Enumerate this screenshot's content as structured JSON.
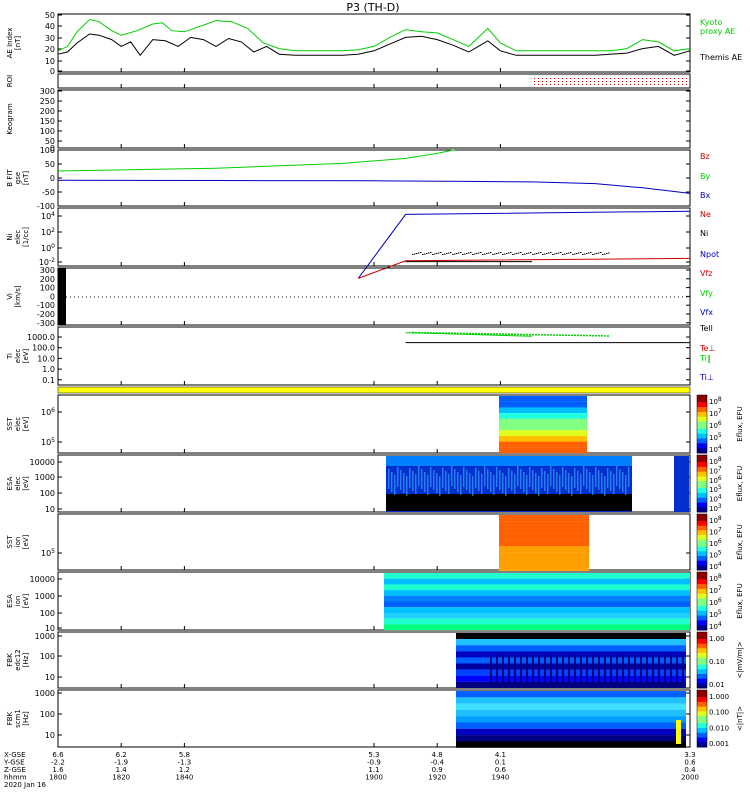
{
  "title": "P3 (TH-D)",
  "colors": {
    "green": "#00d000",
    "black": "#000000",
    "red": "#d00000",
    "blue": "#0000c0",
    "yellow": "#ffff00"
  },
  "chart_data": {
    "type": "line",
    "panels": [
      {
        "id": "ae",
        "ylabel": [
          "AE Index",
          "[nT]"
        ],
        "yticks": [
          "50",
          "40",
          "30",
          "20",
          "10",
          "0"
        ],
        "legend": [
          {
            "text": "Kyoto",
            "color": "green"
          },
          {
            "text": "proxy AE",
            "color": "green"
          },
          {
            "text": "Themis AE",
            "color": "black"
          }
        ],
        "series": [
          {
            "name": "Kyoto proxy AE",
            "color": "green",
            "x": [
              1800,
              1803,
              1806,
              1810,
              1813,
              1817,
              1820,
              1825,
              1830,
              1833,
              1836,
              1840,
              1845,
              1850,
              1855,
              1860,
              1865,
              1870,
              1875,
              1880,
              1885,
              1890,
              1895,
              1900,
              1905,
              1910,
              1915,
              1920,
              1925,
              1930,
              1933,
              1936,
              1940,
              1945,
              1950,
              1955,
              1960,
              1965,
              1970,
              1975,
              1980,
              1985,
              1990,
              1995,
              2000
            ],
            "y": [
              18,
              22,
              35,
              46,
              44,
              36,
              32,
              36,
              42,
              43,
              36,
              35,
              40,
              45,
              44,
              38,
              25,
              20,
              18,
              18,
              18,
              18,
              19,
              22,
              30,
              37,
              35,
              34,
              28,
              22,
              30,
              38,
              25,
              18,
              18,
              18,
              18,
              18,
              18,
              18,
              20,
              28,
              26,
              18,
              20
            ]
          },
          {
            "name": "Themis AE",
            "color": "black",
            "x": [
              1800,
              1803,
              1806,
              1810,
              1813,
              1817,
              1820,
              1823,
              1826,
              1830,
              1834,
              1838,
              1842,
              1846,
              1850,
              1854,
              1858,
              1862,
              1866,
              1870,
              1875,
              1880,
              1885,
              1890,
              1895,
              1900,
              1905,
              1910,
              1915,
              1920,
              1925,
              1930,
              1933,
              1936,
              1940,
              1945,
              1950,
              1960,
              1970,
              1980,
              1985,
              1990,
              1995,
              2000
            ],
            "y": [
              15,
              17,
              25,
              33,
              32,
              28,
              22,
              26,
              14,
              28,
              27,
              22,
              30,
              28,
              22,
              29,
              26,
              17,
              22,
              15,
              14,
              14,
              14,
              14,
              15,
              18,
              24,
              30,
              31,
              28,
              23,
              17,
              22,
              27,
              18,
              14,
              14,
              14,
              14,
              16,
              20,
              22,
              14,
              18
            ]
          }
        ]
      },
      {
        "id": "roi",
        "ylabel": [
          "ROI"
        ]
      },
      {
        "id": "keogram",
        "ylabel": [
          "Keogram"
        ],
        "yticks": [
          "300",
          "250",
          "200",
          "150",
          "100",
          "50",
          "0"
        ]
      },
      {
        "id": "bfit",
        "ylabel": [
          "B FIT",
          "gse",
          "[nT]"
        ],
        "yticks": [
          "100",
          "50",
          "0",
          "-50",
          "-100"
        ],
        "legend": [
          {
            "text": "Bz",
            "color": "red"
          },
          {
            "text": "By",
            "color": "green"
          },
          {
            "text": "Bx",
            "color": "blue"
          }
        ],
        "series": [
          {
            "name": "By",
            "color": "green",
            "x": [
              1800,
              1850,
              1890,
              1910,
              1920,
              1926
            ],
            "y": [
              25,
              35,
              52,
              70,
              88,
              102
            ]
          },
          {
            "name": "Bx",
            "color": "blue",
            "x": [
              1800,
              1850,
              1900,
              1930,
              1950,
              1970,
              1985,
              2000
            ],
            "y": [
              -8,
              -9,
              -10,
              -12,
              -14,
              -20,
              -35,
              -55
            ]
          }
        ]
      },
      {
        "id": "ni",
        "ylabel": [
          "Ni",
          "elec",
          "[1/cc]"
        ],
        "yticks": [
          "10^4",
          "10^2",
          "10^0",
          "10^-2"
        ],
        "legend": [
          {
            "text": "Ne",
            "color": "red"
          },
          {
            "text": "Ni",
            "color": "black"
          },
          {
            "text": "Npot",
            "color": "blue"
          }
        ],
        "series": [
          {
            "name": "Npot",
            "color": "blue",
            "x": [
              1895,
              1910,
              2000
            ],
            "y": [
              -3.8,
              4.2,
              4.6
            ]
          },
          {
            "name": "Ne",
            "color": "red",
            "x": [
              1895,
              1910,
              2000
            ],
            "y": [
              -3.8,
              -1.6,
              -1.3
            ]
          },
          {
            "name": "Ni",
            "color": "black",
            "x": [
              1910,
              1950
            ],
            "y": [
              -1.7,
              -1.7
            ]
          }
        ]
      },
      {
        "id": "vi",
        "ylabel": [
          "Vi",
          "[km/s]"
        ],
        "yticks": [
          "300",
          "200",
          "100",
          "0",
          "-100",
          "-200",
          "-300"
        ],
        "legend": [
          {
            "text": "Vfz",
            "color": "red"
          },
          {
            "text": "Vfy",
            "color": "green"
          },
          {
            "text": "Vfx",
            "color": "blue"
          }
        ]
      },
      {
        "id": "ti",
        "ylabel": [
          "Ti",
          "elec",
          "[eV]"
        ],
        "yticks": [
          "1000.0",
          "100.0",
          "10.0",
          "1.0",
          "0.1"
        ],
        "legend": [
          {
            "text": "Tell",
            "color": "black"
          },
          {
            "text": "Te⊥",
            "color": "red"
          },
          {
            "text": "Ti‖",
            "color": "green"
          },
          {
            "text": "Ti⊥",
            "color": "blue"
          }
        ],
        "series": [
          {
            "name": "Ti‖",
            "color": "green",
            "x": [
              1910,
              1920,
              1935,
              1950
            ],
            "y": [
              3.3,
              3.25,
              3.15,
              3.05
            ]
          },
          {
            "name": "Tell",
            "color": "black",
            "x": [
              1910,
              1950,
              2000
            ],
            "y": [
              2.6,
              2.6,
              2.6
            ]
          }
        ]
      },
      {
        "id": "sst1",
        "ylabel": [
          "SST",
          "elec",
          "[eV]"
        ],
        "yticks": [
          "10^6",
          "10^5"
        ],
        "colorbar": [
          "10^8",
          "10^7",
          "10^6",
          "10^5",
          "10^4"
        ],
        "cbar_label": "Eflux, EFU"
      },
      {
        "id": "esa1",
        "ylabel": [
          "ESA",
          "elec",
          "[eV]"
        ],
        "yticks": [
          "10000",
          "1000",
          "100",
          "10"
        ],
        "colorbar": [
          "10^8",
          "10^7",
          "10^6",
          "10^5",
          "10^4",
          "10^3"
        ],
        "cbar_label": "Eflux, EFU"
      },
      {
        "id": "sst2",
        "ylabel": [
          "SST",
          "ion",
          "[eV]"
        ],
        "yticks": [
          "10^5"
        ],
        "colorbar": [
          "10^8",
          "10^7",
          "10^6",
          "10^5",
          "10^4"
        ],
        "cbar_label": "Eflux, EFU"
      },
      {
        "id": "esa2",
        "ylabel": [
          "ESA",
          "ion",
          "[eV]"
        ],
        "yticks": [
          "10000",
          "1000",
          "100",
          "10"
        ],
        "colorbar": [
          "10^8",
          "10^7",
          "10^6",
          "10^5",
          "10^4"
        ],
        "cbar_label": "Eflux, EFU"
      },
      {
        "id": "fbk1",
        "ylabel": [
          "FBK",
          "edc12",
          "[Hz]"
        ],
        "yticks": [
          "1000",
          "100",
          "10"
        ],
        "colorbar": [
          "1.00",
          "0.10",
          "0.01"
        ],
        "cbar_label": "<|mV/m|>"
      },
      {
        "id": "fbk2",
        "ylabel": [
          "FBK",
          "scm1",
          "[Hz]"
        ],
        "yticks": [
          "1000",
          "100",
          "10"
        ],
        "colorbar": [
          "1.000",
          "0.100",
          "0.010",
          "0.001"
        ],
        "cbar_label": "<|nT|>"
      }
    ],
    "xaxis": {
      "row_labels": [
        "X-GSE",
        "Y-GSE",
        "Z-GSE",
        "hhmm",
        "2020 Jan 16"
      ],
      "ticks": [
        {
          "x": 1800,
          "vals": [
            "6.6",
            "-2.2",
            "1.6",
            "1800"
          ]
        },
        {
          "x": 1820,
          "vals": [
            "6.2",
            "-1.9",
            "1.4",
            "1820"
          ]
        },
        {
          "x": 1840,
          "vals": [
            "5.8",
            "-1.3",
            "1.2",
            "1840"
          ]
        },
        {
          "x": 1900,
          "vals": [
            "5.3",
            "-0.9",
            "1.1",
            "1900"
          ]
        },
        {
          "x": 1920,
          "vals": [
            "4.8",
            "-0.4",
            "0.9",
            "1920"
          ]
        },
        {
          "x": 1940,
          "vals": [
            "4.1",
            "0.1",
            "0.6",
            "1940"
          ]
        },
        {
          "x": 2000,
          "vals": [
            "3.3",
            "0.6",
            "0.4",
            "2000"
          ]
        }
      ]
    }
  }
}
